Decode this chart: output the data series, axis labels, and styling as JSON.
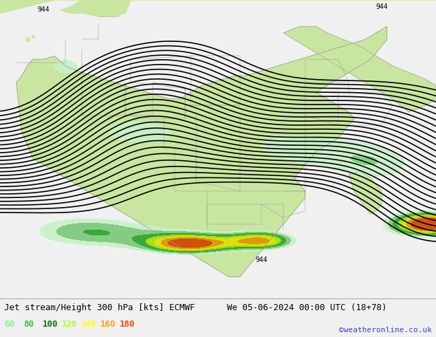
{
  "title_left": "Jet stream/Height 300 hPa [kts] ECMWF",
  "title_right": "We 05-06-2024 00:00 UTC (18+78)",
  "watermark": "©weatheronline.co.uk",
  "legend_values": [
    "60",
    "80",
    "100",
    "120",
    "140",
    "160",
    "180"
  ],
  "legend_text_colors": [
    "#90ee90",
    "#32cd32",
    "#008000",
    "#adff2f",
    "#ffff00",
    "#ffa500",
    "#ff4500"
  ],
  "fill_colors": [
    "#c8f0c8",
    "#78c878",
    "#28a028",
    "#a0e000",
    "#e0e000",
    "#e09000",
    "#d04000"
  ],
  "fill_levels": [
    60,
    80,
    100,
    120,
    140,
    160,
    180,
    220
  ],
  "background_color": "#f0f0f0",
  "sea_color": "#d8d8d8",
  "land_color": "#c8e6a0",
  "border_color": "#999999",
  "contour_color": "#000000",
  "title_fontsize": 9,
  "watermark_color": "#3344cc",
  "figsize": [
    6.34,
    4.9
  ],
  "dpi": 100
}
